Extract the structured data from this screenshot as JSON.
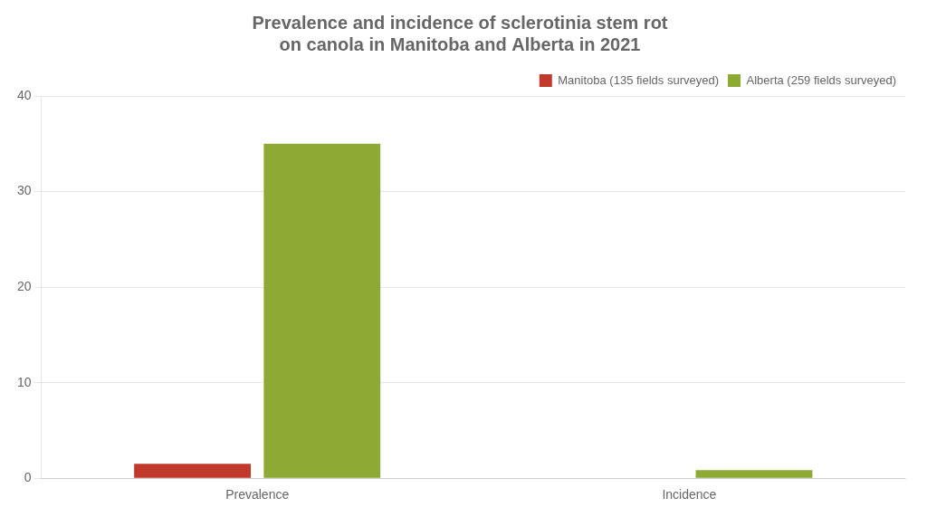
{
  "chart_data": {
    "type": "bar",
    "title": "Prevalence and incidence of sclerotinia stem rot\non canola in Manitoba and Alberta in 2021",
    "categories": [
      "Prevalence",
      "Incidence"
    ],
    "series": [
      {
        "name": "Manitoba (135 fields surveyed)",
        "color": "#c1392b",
        "values": [
          1.5,
          0.0
        ]
      },
      {
        "name": "Alberta (259 fields surveyed)",
        "color": "#8faa34",
        "values": [
          35.0,
          0.85
        ]
      }
    ],
    "ylim": [
      0,
      40
    ],
    "yticks": [
      0,
      10,
      20,
      30,
      40
    ],
    "grid": true,
    "legend": "upper right"
  }
}
